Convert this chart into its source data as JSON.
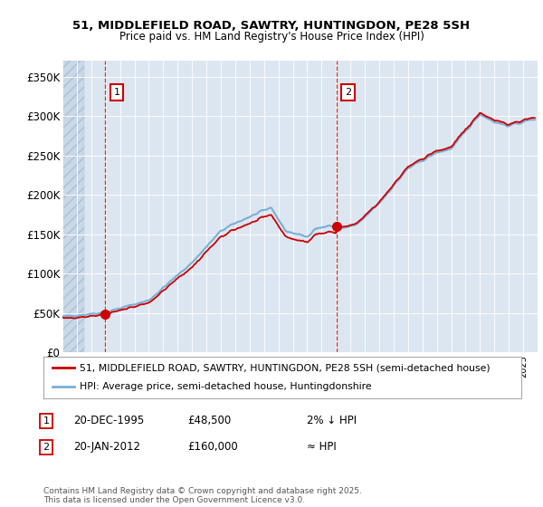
{
  "title": "51, MIDDLEFIELD ROAD, SAWTRY, HUNTINGDON, PE28 5SH",
  "subtitle": "Price paid vs. HM Land Registry's House Price Index (HPI)",
  "legend_line1": "51, MIDDLEFIELD ROAD, SAWTRY, HUNTINGDON, PE28 5SH (semi-detached house)",
  "legend_line2": "HPI: Average price, semi-detached house, Huntingdonshire",
  "annotation1_label": "1",
  "annotation1_date": "20-DEC-1995",
  "annotation1_price": "£48,500",
  "annotation1_hpi": "2% ↓ HPI",
  "annotation2_label": "2",
  "annotation2_date": "20-JAN-2012",
  "annotation2_price": "£160,000",
  "annotation2_hpi": "≈ HPI",
  "footer": "Contains HM Land Registry data © Crown copyright and database right 2025.\nThis data is licensed under the Open Government Licence v3.0.",
  "bg_color": "#dce6f1",
  "line_color_hpi": "#7bafd4",
  "line_color_price": "#cc0000",
  "marker_color": "#cc0000",
  "annotation_box_color": "#cc0000",
  "vline_color": "#cc0000",
  "ylim": [
    0,
    370000
  ],
  "xlim_start": 1993.0,
  "xlim_end": 2026.0,
  "purchase_years": [
    1995.97,
    2012.05
  ],
  "purchase_prices": [
    48500,
    160000
  ],
  "yticks": [
    0,
    50000,
    100000,
    150000,
    200000,
    250000,
    300000,
    350000
  ],
  "ytick_labels": [
    "£0",
    "£50K",
    "£100K",
    "£150K",
    "£200K",
    "£250K",
    "£300K",
    "£350K"
  ]
}
